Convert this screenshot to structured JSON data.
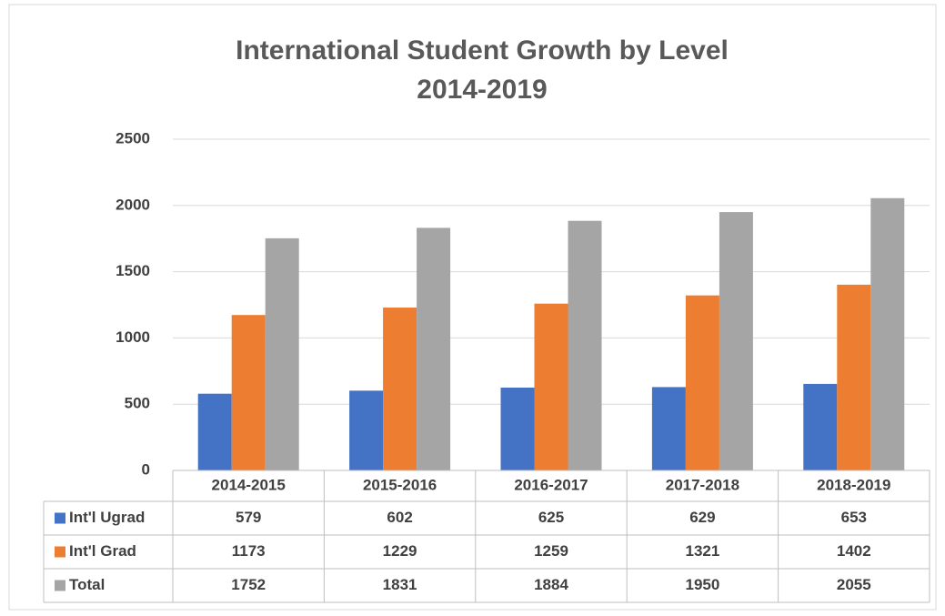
{
  "chart_data": {
    "type": "bar",
    "title": "International Student Growth by Level",
    "subtitle": "2014-2019",
    "categories": [
      "2014-2015",
      "2015-2016",
      "2016-2017",
      "2017-2018",
      "2018-2019"
    ],
    "series": [
      {
        "name": "Int'l Ugrad",
        "color": "#4472c4",
        "values": [
          579,
          602,
          625,
          629,
          653
        ]
      },
      {
        "name": "Int'l Grad",
        "color": "#ed7d31",
        "values": [
          1173,
          1229,
          1259,
          1321,
          1402
        ]
      },
      {
        "name": "Total",
        "color": "#a5a5a5",
        "values": [
          1752,
          1831,
          1884,
          1950,
          2055
        ]
      }
    ],
    "ylim": [
      0,
      2500
    ],
    "yticks": [
      0,
      500,
      1000,
      1500,
      2000,
      2500
    ],
    "grid": true
  }
}
